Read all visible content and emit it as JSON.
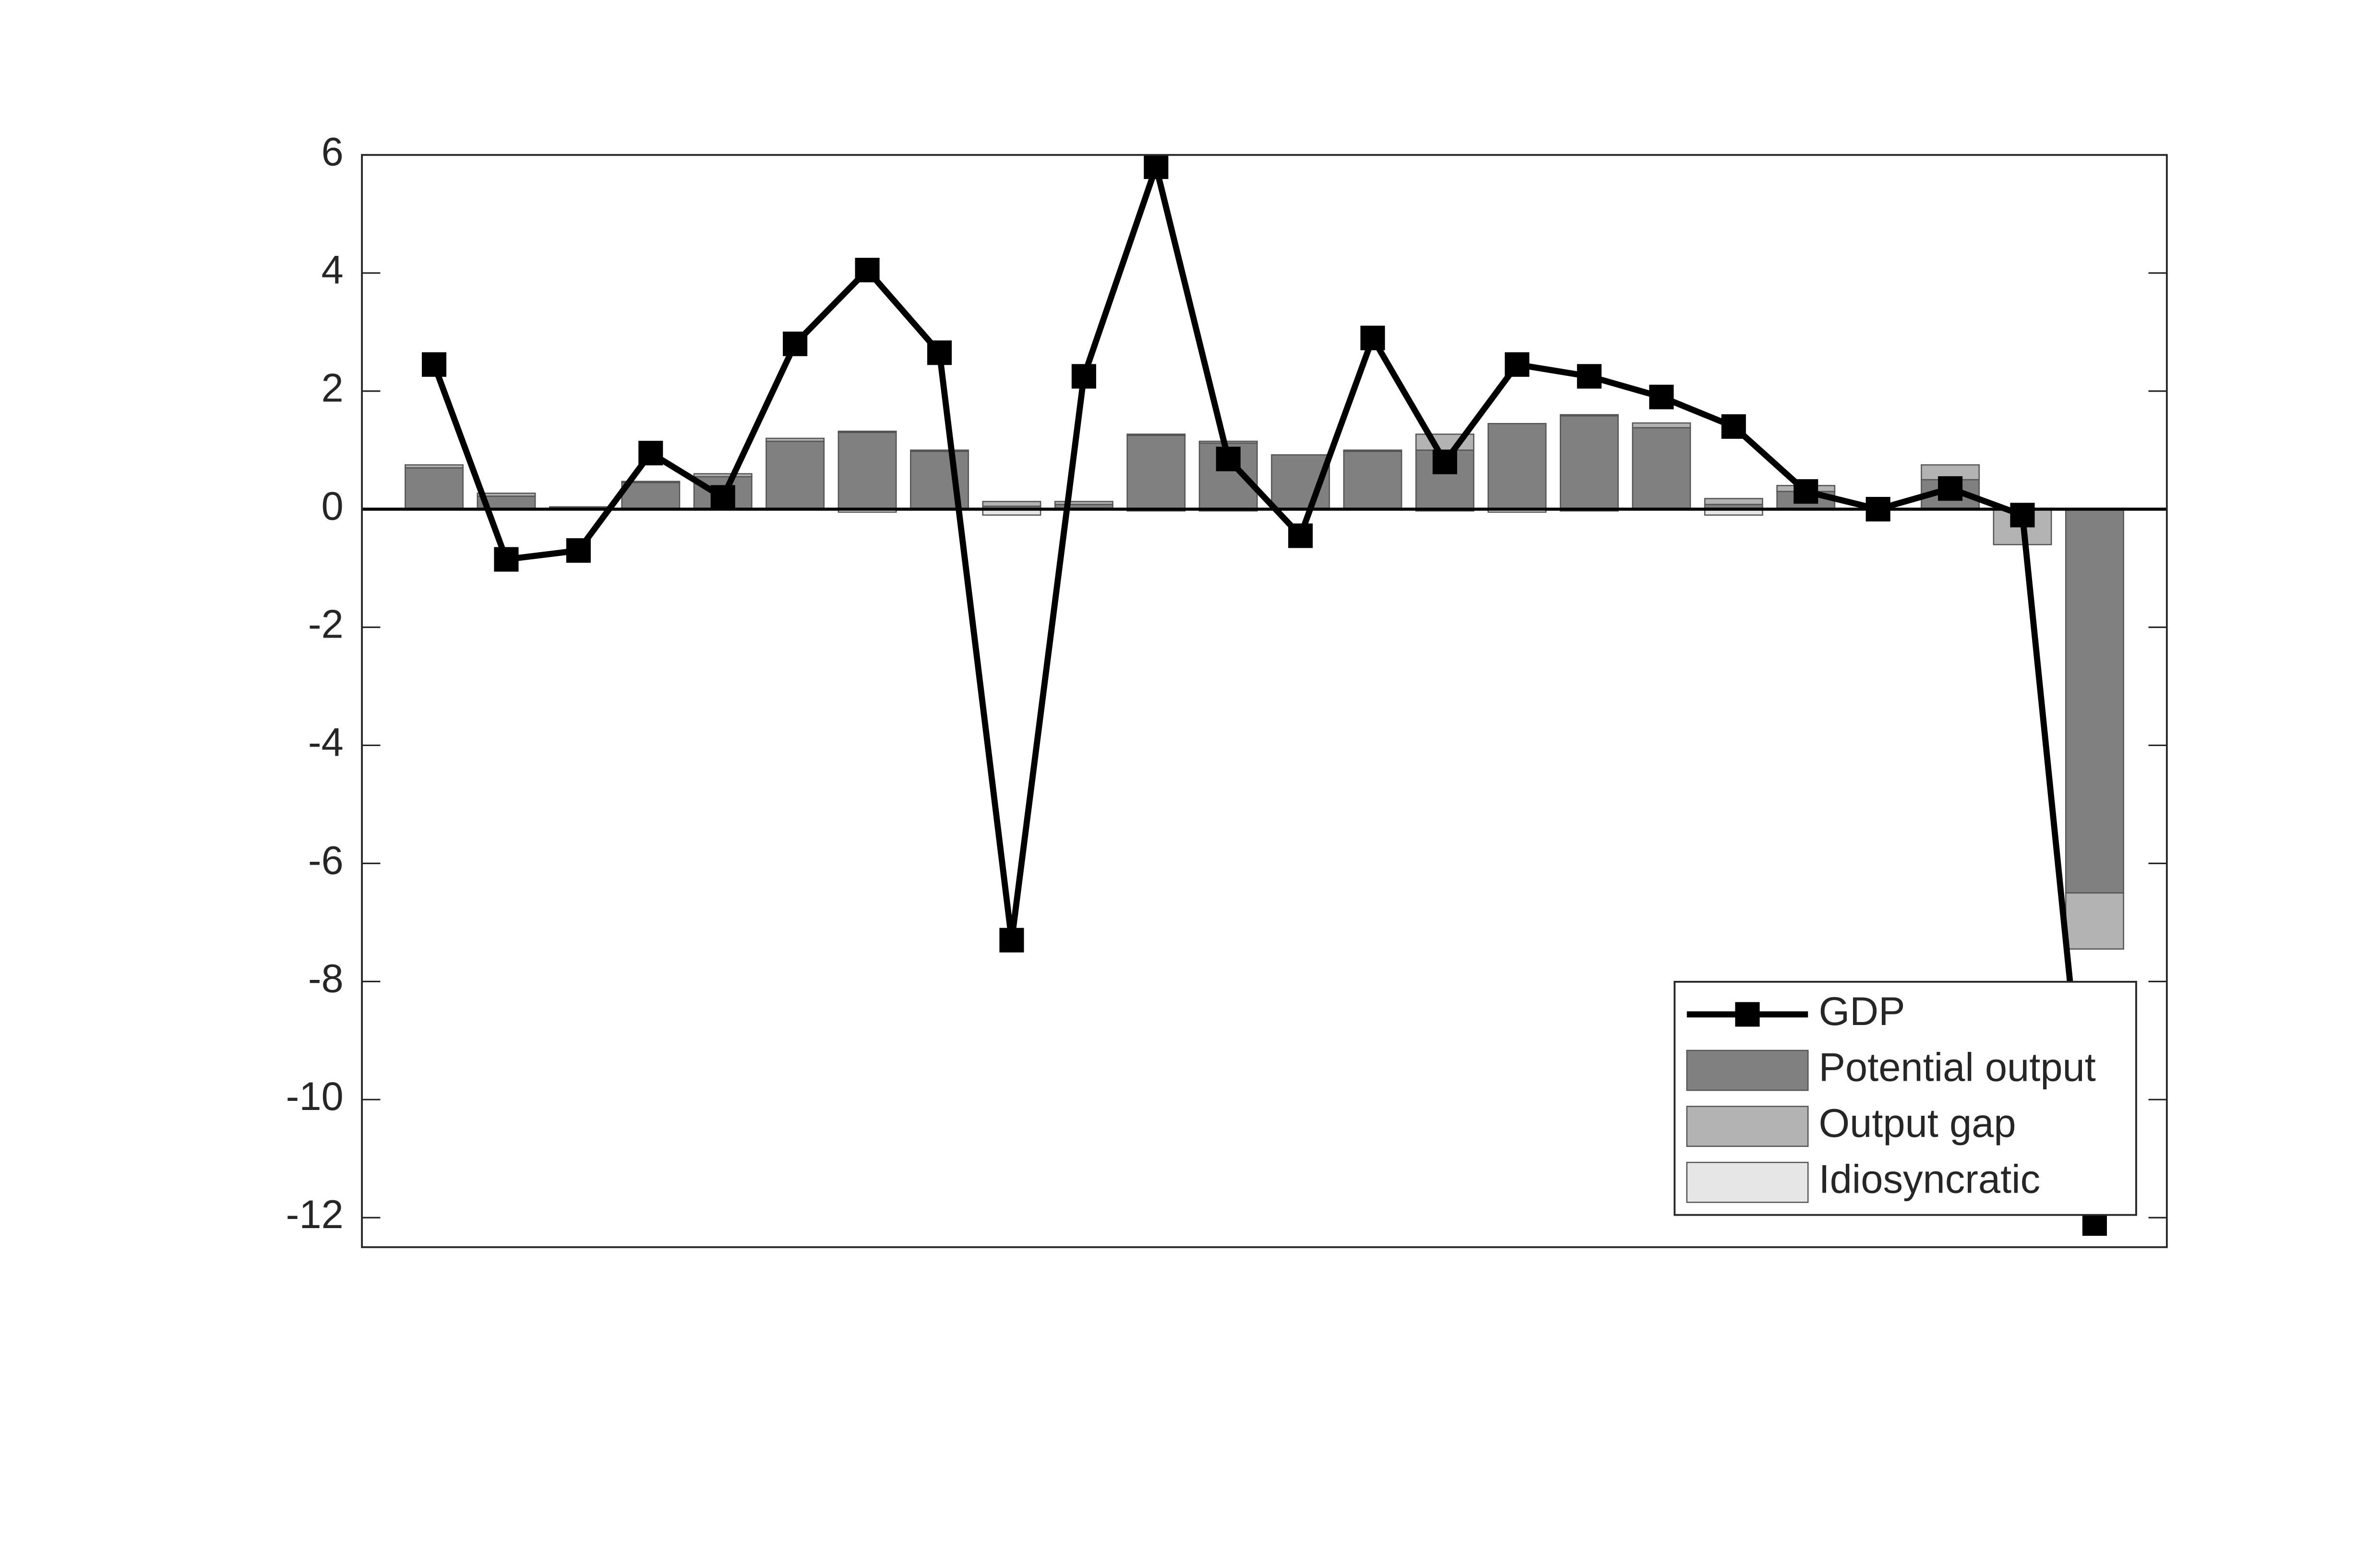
{
  "chart_data": {
    "type": "bar",
    "categories": [
      null,
      null,
      null,
      null,
      null,
      null,
      null,
      null,
      null,
      null,
      null,
      null,
      null,
      null,
      null,
      null,
      null,
      null,
      null,
      null,
      null,
      null,
      null,
      null
    ],
    "series": [
      {
        "name": "GDP",
        "type": "line",
        "color": "#000000",
        "values": [
          2.45,
          -0.85,
          -0.7,
          0.95,
          0.2,
          2.8,
          4.05,
          2.65,
          -7.3,
          2.25,
          5.8,
          0.85,
          -0.45,
          2.9,
          0.8,
          2.45,
          2.25,
          1.9,
          1.4,
          0.3,
          0.0,
          0.35,
          -0.1,
          -12.1
        ]
      },
      {
        "name": "Potential output",
        "type": "bar",
        "color": "#808080",
        "values": [
          0.7,
          0.22,
          0.02,
          0.45,
          0.55,
          1.15,
          1.3,
          0.98,
          0.05,
          0.08,
          1.25,
          1.12,
          0.92,
          0.98,
          1.0,
          1.45,
          1.58,
          1.38,
          0.08,
          0.3,
          0,
          0.5,
          0,
          -6.5
        ]
      },
      {
        "name": "Output gap",
        "type": "bar",
        "color": "#b3b3b3",
        "values": [
          0.05,
          0.05,
          0.02,
          0.02,
          0.05,
          0.05,
          0.02,
          0.02,
          0.08,
          0.05,
          0.02,
          0.03,
          0,
          0.02,
          0.27,
          0,
          0.02,
          0.08,
          0.1,
          0.1,
          0,
          0.25,
          -0.6,
          -0.95
        ]
      },
      {
        "name": "Idiosyncratic",
        "type": "bar",
        "color": "#e6e6e6",
        "values": [
          0,
          0,
          0,
          0,
          0,
          0,
          -0.05,
          0,
          -0.1,
          0,
          -0.03,
          -0.03,
          0,
          0,
          -0.03,
          -0.05,
          -0.03,
          0,
          -0.1,
          0,
          0,
          0,
          0,
          0
        ]
      }
    ],
    "stacked": true,
    "ylim": [
      -12.5,
      6
    ],
    "yticks": [
      -12,
      -10,
      -8,
      -6,
      -4,
      -2,
      0,
      2,
      4,
      6
    ],
    "legend": "lower right"
  }
}
